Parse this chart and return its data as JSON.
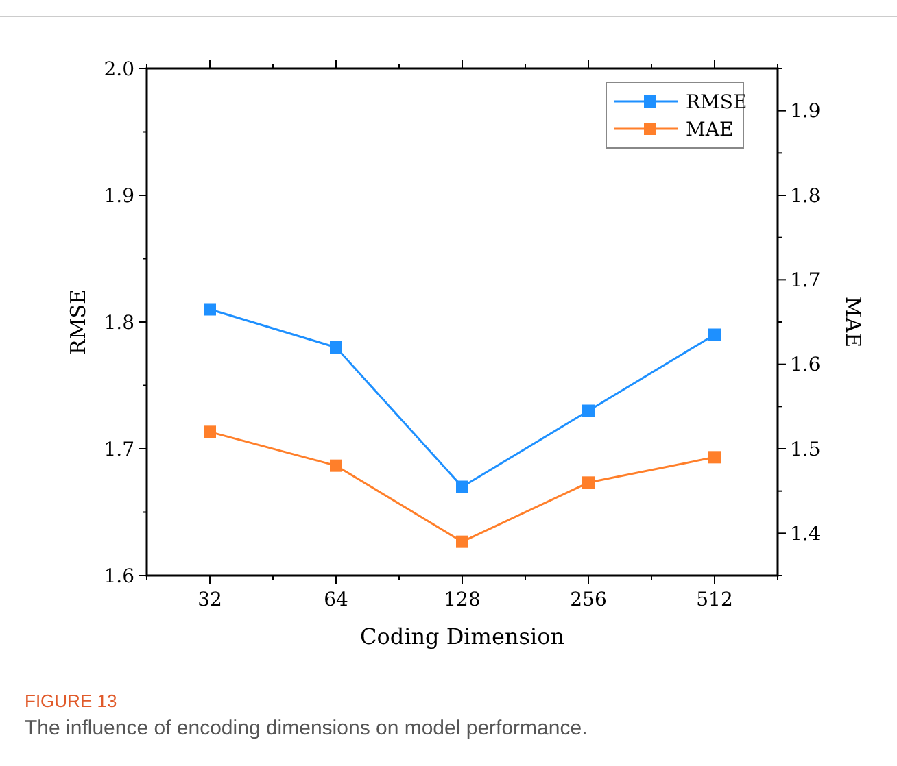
{
  "chart_data": {
    "type": "line",
    "xlabel": "Coding Dimension",
    "ylabel": "RMSE",
    "y2label": "MAE",
    "categories": [
      "32",
      "64",
      "128",
      "256",
      "512"
    ],
    "series": [
      {
        "name": "RMSE",
        "color": "#1e90ff",
        "values": [
          1.81,
          1.78,
          1.67,
          1.73,
          1.79
        ]
      },
      {
        "name": "MAE",
        "color": "#ff7f2a",
        "values": [
          1.52,
          1.48,
          1.39,
          1.46,
          1.49
        ],
        "axis": "y2"
      }
    ],
    "ylim": [
      1.6,
      2.0
    ],
    "yticks": [
      {
        "value": 1.6,
        "label": "1.6"
      },
      {
        "value": 1.65,
        "label": null
      },
      {
        "value": 1.7,
        "label": "1.7"
      },
      {
        "value": 1.75,
        "label": null
      },
      {
        "value": 1.8,
        "label": "1.8"
      },
      {
        "value": 1.85,
        "label": null
      },
      {
        "value": 1.9,
        "label": "1.9"
      },
      {
        "value": 1.95,
        "label": null
      },
      {
        "value": 2.0,
        "label": "2.0"
      }
    ],
    "y2lim": [
      1.35,
      1.95
    ],
    "y2ticks": [
      {
        "value": 1.35,
        "label": null
      },
      {
        "value": 1.4,
        "label": "1.4"
      },
      {
        "value": 1.45,
        "label": null
      },
      {
        "value": 1.5,
        "label": "1.5"
      },
      {
        "value": 1.55,
        "label": null
      },
      {
        "value": 1.6,
        "label": "1.6"
      },
      {
        "value": 1.65,
        "label": null
      },
      {
        "value": 1.7,
        "label": "1.7"
      },
      {
        "value": 1.75,
        "label": null
      },
      {
        "value": 1.8,
        "label": "1.8"
      },
      {
        "value": 1.85,
        "label": null
      },
      {
        "value": 1.9,
        "label": "1.9"
      },
      {
        "value": 1.95,
        "label": null
      }
    ],
    "marker": "square",
    "line_style": "solid",
    "grid": false,
    "legend": "top right",
    "annotations": [
      "FIGURE 13",
      "The influence of encoding dimensions on model performance."
    ]
  }
}
